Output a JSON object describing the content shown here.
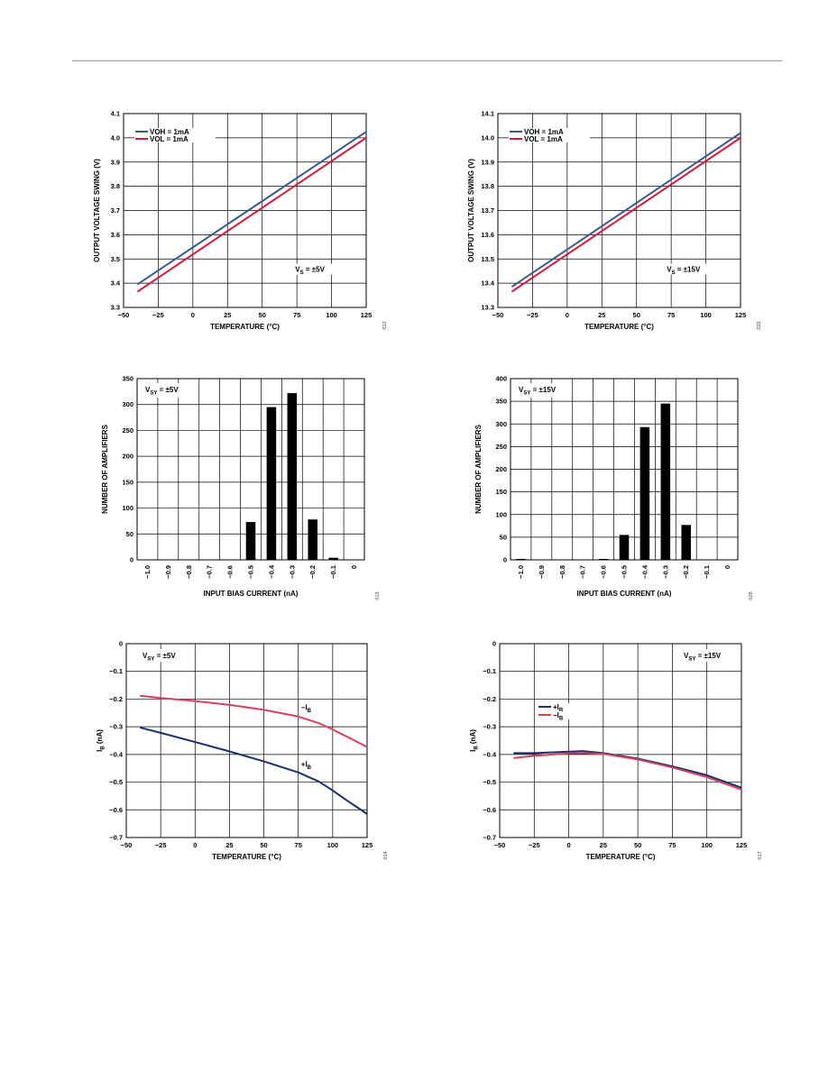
{
  "colors": {
    "blue": "#3a5a8a",
    "red": "#d6163c",
    "navy": "#1a2f6e",
    "pink": "#d8405a",
    "bar": "#000000"
  },
  "chart_data": [
    {
      "type": "line",
      "xlabel": "TEMPERATURE (°C)",
      "ylabel": "OUTPUT VOLTAGE SWING (V)",
      "xlim": [
        -50,
        125
      ],
      "ylim": [
        3.3,
        4.1
      ],
      "xticks": [
        -50,
        -25,
        0,
        25,
        50,
        75,
        100,
        125
      ],
      "xtick_labels": [
        "−50",
        "−25",
        "0",
        "25",
        "50",
        "75",
        "100",
        "125"
      ],
      "yticks": [
        3.3,
        3.4,
        3.5,
        3.6,
        3.7,
        3.8,
        3.9,
        4.0,
        4.1
      ],
      "ytick_labels": [
        "3.3",
        "3.4",
        "3.5",
        "3.6",
        "3.7",
        "3.8",
        "3.9",
        "4.0",
        "4.1"
      ],
      "legend": "top-left",
      "series": [
        {
          "name": "VOH = 1mA",
          "color": "blue",
          "x": [
            -40,
            125
          ],
          "y": [
            3.395,
            4.025
          ]
        },
        {
          "name": "VOL = 1mA",
          "color": "red",
          "x": [
            -40,
            125
          ],
          "y": [
            3.365,
            4.0
          ]
        }
      ],
      "annotations": [
        {
          "text": "VS = ±5V",
          "x": 92,
          "y": 3.45
        }
      ],
      "code": "012"
    },
    {
      "type": "line",
      "xlabel": "TEMPERATURE (°C)",
      "ylabel": "OUTPUT VOLTAGE SWING (V)",
      "xlim": [
        -50,
        125
      ],
      "ylim": [
        13.3,
        14.1
      ],
      "xticks": [
        -50,
        -25,
        0,
        25,
        50,
        75,
        100,
        125
      ],
      "xtick_labels": [
        "−50",
        "−25",
        "0",
        "25",
        "50",
        "75",
        "100",
        "125"
      ],
      "yticks": [
        13.3,
        13.4,
        13.5,
        13.6,
        13.7,
        13.8,
        13.9,
        14.0,
        14.1
      ],
      "ytick_labels": [
        "13.3",
        "13.4",
        "13.5",
        "13.6",
        "13.7",
        "13.8",
        "13.9",
        "14.0",
        "14.1"
      ],
      "legend": "top-left",
      "series": [
        {
          "name": "VOH = 1mA",
          "color": "blue",
          "x": [
            -40,
            125
          ],
          "y": [
            13.385,
            14.02
          ]
        },
        {
          "name": "VOL = 1mA",
          "color": "red",
          "x": [
            -40,
            125
          ],
          "y": [
            13.365,
            14.0
          ]
        }
      ],
      "annotations": [
        {
          "text": "VS = ±15V",
          "x": 90,
          "y": 13.45
        }
      ],
      "code": "025"
    },
    {
      "type": "bar",
      "xlabel": "INPUT BIAS CURRENT (nA)",
      "ylabel": "NUMBER OF AMPLIFIERS",
      "ylim": [
        0,
        350
      ],
      "yticks": [
        0,
        50,
        100,
        150,
        200,
        250,
        300,
        350
      ],
      "ytick_labels": [
        "0",
        "50",
        "100",
        "150",
        "200",
        "250",
        "300",
        "350"
      ],
      "categories": [
        "−1.0",
        "−0.9",
        "−0.8",
        "−0.7",
        "−0.6",
        "−0.5",
        "−0.4",
        "−0.3",
        "−0.2",
        "−0.1",
        "0"
      ],
      "values": [
        0,
        0,
        0,
        0,
        0,
        73,
        295,
        322,
        78,
        4,
        0
      ],
      "annotations": [
        {
          "text": "VSY = ±5V"
        }
      ],
      "code": "013"
    },
    {
      "type": "bar",
      "xlabel": "INPUT BIAS CURRENT (nA)",
      "ylabel": "NUMBER OF AMPLIFIERS",
      "ylim": [
        0,
        400
      ],
      "yticks": [
        0,
        50,
        100,
        150,
        200,
        250,
        300,
        350,
        400
      ],
      "ytick_labels": [
        "0",
        "50",
        "100",
        "150",
        "200",
        "250",
        "300",
        "350",
        "400"
      ],
      "categories": [
        "−1.0",
        "−0.9",
        "−0.8",
        "−0.7",
        "−0.6",
        "−0.5",
        "−0.4",
        "−0.3",
        "−0.2",
        "−0.1",
        "0"
      ],
      "values": [
        2,
        0,
        0,
        0,
        2,
        55,
        293,
        345,
        77,
        0,
        0
      ],
      "annotations": [
        {
          "text": "VSY = ±15V"
        }
      ],
      "code": "026"
    },
    {
      "type": "line",
      "xlabel": "TEMPERATURE (°C)",
      "ylabel": "IB (nA)",
      "xlim": [
        -50,
        125
      ],
      "ylim": [
        -0.7,
        0
      ],
      "xticks": [
        -50,
        -25,
        0,
        25,
        50,
        75,
        100,
        125
      ],
      "xtick_labels": [
        "−50",
        "−25",
        "0",
        "25",
        "50",
        "75",
        "100",
        "125"
      ],
      "yticks": [
        -0.7,
        -0.6,
        -0.5,
        -0.4,
        -0.3,
        -0.2,
        -0.1,
        0
      ],
      "ytick_labels": [
        "−0.7",
        "−0.6",
        "−0.5",
        "−0.4",
        "−0.3",
        "−0.2",
        "−0.1",
        "0"
      ],
      "series": [
        {
          "name": "−IB",
          "color": "pink",
          "x": [
            -40,
            -25,
            0,
            25,
            50,
            75,
            90,
            100,
            110,
            125
          ],
          "y": [
            -0.188,
            -0.196,
            -0.207,
            -0.221,
            -0.239,
            -0.263,
            -0.287,
            -0.31,
            -0.335,
            -0.373
          ]
        },
        {
          "name": "+IB",
          "color": "navy",
          "x": [
            -40,
            -25,
            0,
            25,
            50,
            75,
            90,
            100,
            110,
            125
          ],
          "y": [
            -0.303,
            -0.322,
            -0.355,
            -0.389,
            -0.425,
            -0.465,
            -0.498,
            -0.53,
            -0.565,
            -0.615
          ]
        }
      ],
      "annotations": [
        {
          "text": "VSY = ±5V"
        },
        {
          "text": "−IB",
          "x": 77,
          "y": -0.24
        },
        {
          "text": "+IB",
          "x": 77,
          "y": -0.445
        }
      ],
      "code": "014"
    },
    {
      "type": "line",
      "xlabel": "TEMPERATURE (°C)",
      "ylabel": "IB (nA)",
      "xlim": [
        -50,
        125
      ],
      "ylim": [
        -0.7,
        0
      ],
      "xticks": [
        -50,
        -25,
        0,
        25,
        50,
        75,
        100,
        125
      ],
      "xtick_labels": [
        "−50",
        "−25",
        "0",
        "25",
        "50",
        "75",
        "100",
        "125"
      ],
      "yticks": [
        -0.7,
        -0.6,
        -0.5,
        -0.4,
        -0.3,
        -0.2,
        -0.1,
        0
      ],
      "ytick_labels": [
        "−0.7",
        "−0.6",
        "−0.5",
        "−0.4",
        "−0.3",
        "−0.2",
        "−0.1",
        "0"
      ],
      "legend": "upper-left",
      "series": [
        {
          "name": "+IB",
          "color": "navy",
          "x": [
            -40,
            -25,
            0,
            10,
            25,
            50,
            75,
            100,
            125
          ],
          "y": [
            -0.395,
            -0.395,
            -0.39,
            -0.388,
            -0.395,
            -0.415,
            -0.443,
            -0.475,
            -0.52
          ]
        },
        {
          "name": "−IB",
          "color": "pink",
          "x": [
            -40,
            -25,
            0,
            10,
            25,
            50,
            75,
            100,
            125
          ],
          "y": [
            -0.413,
            -0.405,
            -0.396,
            -0.395,
            -0.398,
            -0.418,
            -0.447,
            -0.482,
            -0.527
          ]
        }
      ],
      "annotations": [
        {
          "text": "VSY = ±15V"
        }
      ],
      "code": "017"
    }
  ]
}
